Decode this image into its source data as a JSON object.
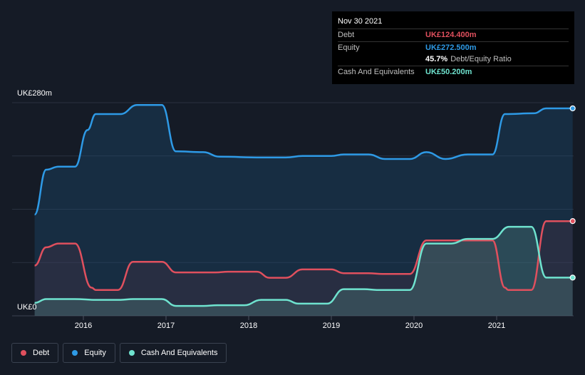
{
  "chart_data": {
    "type": "area",
    "title": "",
    "xlabel": "",
    "ylabel": "",
    "ylim": [
      0,
      280
    ],
    "y_tick_labels": [
      "UK£280m",
      "UK£0"
    ],
    "x_tick_labels": [
      "2016",
      "2017",
      "2018",
      "2019",
      "2020",
      "2021"
    ],
    "series": [
      {
        "name": "Equity",
        "color": "#2e9ae6",
        "points": [
          [
            2015.41,
            133
          ],
          [
            2015.55,
            192
          ],
          [
            2015.7,
            196
          ],
          [
            2015.9,
            196
          ],
          [
            2016.05,
            244
          ],
          [
            2016.15,
            265
          ],
          [
            2016.45,
            265
          ],
          [
            2016.65,
            277
          ],
          [
            2016.95,
            277
          ],
          [
            2017.12,
            216
          ],
          [
            2017.45,
            215
          ],
          [
            2017.65,
            209
          ],
          [
            2018.15,
            208
          ],
          [
            2018.45,
            208
          ],
          [
            2018.65,
            210
          ],
          [
            2019.0,
            210
          ],
          [
            2019.15,
            212
          ],
          [
            2019.45,
            212
          ],
          [
            2019.65,
            206
          ],
          [
            2019.95,
            206
          ],
          [
            2020.15,
            215
          ],
          [
            2020.38,
            206
          ],
          [
            2020.65,
            212
          ],
          [
            2020.95,
            212
          ],
          [
            2021.1,
            265
          ],
          [
            2021.45,
            266
          ],
          [
            2021.6,
            272.5
          ],
          [
            2021.92,
            272.5
          ]
        ]
      },
      {
        "name": "Debt",
        "color": "#e0505e",
        "points": [
          [
            2015.41,
            66
          ],
          [
            2015.55,
            90
          ],
          [
            2015.7,
            95
          ],
          [
            2015.9,
            95
          ],
          [
            2016.1,
            37
          ],
          [
            2016.15,
            34
          ],
          [
            2016.42,
            34
          ],
          [
            2016.6,
            71
          ],
          [
            2016.95,
            71
          ],
          [
            2017.12,
            57
          ],
          [
            2017.6,
            57
          ],
          [
            2017.75,
            58
          ],
          [
            2018.1,
            58
          ],
          [
            2018.25,
            50
          ],
          [
            2018.45,
            50
          ],
          [
            2018.65,
            61
          ],
          [
            2019.0,
            61
          ],
          [
            2019.15,
            56
          ],
          [
            2019.45,
            56
          ],
          [
            2019.62,
            55
          ],
          [
            2019.95,
            55
          ],
          [
            2020.15,
            99
          ],
          [
            2020.95,
            99
          ],
          [
            2021.1,
            37
          ],
          [
            2021.14,
            34
          ],
          [
            2021.42,
            34
          ],
          [
            2021.6,
            124.4
          ],
          [
            2021.92,
            124.4
          ]
        ]
      },
      {
        "name": "Cash And Equivalents",
        "color": "#6fe3cf",
        "points": [
          [
            2015.41,
            17
          ],
          [
            2015.55,
            22
          ],
          [
            2015.9,
            22
          ],
          [
            2016.15,
            21
          ],
          [
            2016.45,
            21
          ],
          [
            2016.6,
            22
          ],
          [
            2016.95,
            22
          ],
          [
            2017.12,
            13
          ],
          [
            2017.45,
            13
          ],
          [
            2017.62,
            14
          ],
          [
            2017.95,
            14
          ],
          [
            2018.15,
            21
          ],
          [
            2018.45,
            21
          ],
          [
            2018.6,
            16
          ],
          [
            2018.95,
            16
          ],
          [
            2019.15,
            35
          ],
          [
            2019.4,
            35
          ],
          [
            2019.55,
            34
          ],
          [
            2019.95,
            34
          ],
          [
            2020.15,
            95
          ],
          [
            2020.45,
            95
          ],
          [
            2020.65,
            101
          ],
          [
            2020.95,
            101
          ],
          [
            2021.15,
            117
          ],
          [
            2021.42,
            117
          ],
          [
            2021.6,
            50.2
          ],
          [
            2021.92,
            50.2
          ]
        ]
      }
    ],
    "tooltip": {
      "date": "Nov 30 2021",
      "debt_label": "Debt",
      "debt_value": "UK£124.400m",
      "equity_label": "Equity",
      "equity_value": "UK£272.500m",
      "ratio_value": "45.7%",
      "ratio_text": "Debt/Equity Ratio",
      "cash_label": "Cash And Equivalents",
      "cash_value": "UK£50.200m"
    },
    "legend": [
      {
        "label": "Debt",
        "color": "#e0505e"
      },
      {
        "label": "Equity",
        "color": "#2e9ae6"
      },
      {
        "label": "Cash And Equivalents",
        "color": "#6fe3cf"
      }
    ]
  }
}
